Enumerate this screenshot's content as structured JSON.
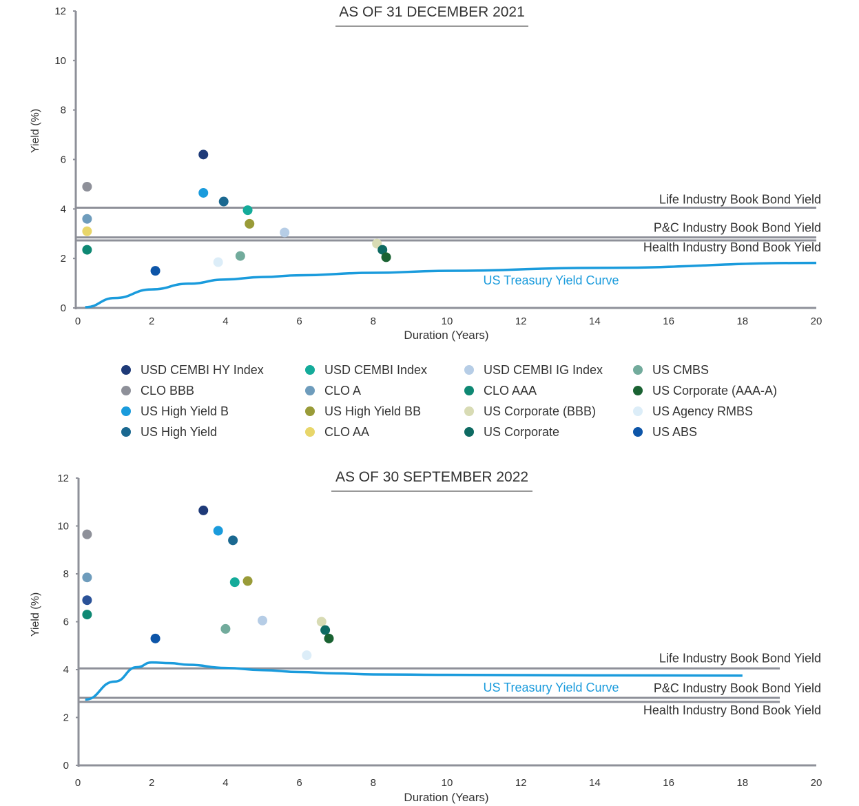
{
  "legend": [
    {
      "name": "USD CEMBI  HY Index",
      "color": "#1e3a78"
    },
    {
      "name": "USD CEMBI Index",
      "color": "#14ab9a"
    },
    {
      "name": "USD CEMBI IG Index",
      "color": "#b6cde6"
    },
    {
      "name": "US CMBS",
      "color": "#72ab9c"
    },
    {
      "name": "CLO BBB",
      "color": "#8e9099"
    },
    {
      "name": "CLO A",
      "color": "#6e9cbc"
    },
    {
      "name": "CLO AAA",
      "color": "#0e8873"
    },
    {
      "name": "US Corporate (AAA-A)",
      "color": "#1a6232"
    },
    {
      "name": "US High Yield B",
      "color": "#1a9bdc"
    },
    {
      "name": "US High Yield BB",
      "color": "#999b38"
    },
    {
      "name": "US Corporate (BBB)",
      "color": "#d8dbb4"
    },
    {
      "name": "US Agency RMBS",
      "color": "#dcedf8"
    },
    {
      "name": "US High Yield",
      "color": "#1a6890"
    },
    {
      "name": "CLO AA",
      "color": "#e8d66a"
    },
    {
      "name": "US Corporate",
      "color": "#0e6a62"
    },
    {
      "name": "US ABS",
      "color": "#0d55a8"
    }
  ],
  "chart_data": [
    {
      "type": "scatter",
      "title": "AS OF 31 DECEMBER 2021",
      "xlabel": "Duration (Years)",
      "ylabel": "Yield (%)",
      "xlim": [
        0,
        20
      ],
      "ylim": [
        0,
        12
      ],
      "xticks": [
        "0",
        "2",
        "4",
        "6",
        "8",
        "10",
        "12",
        "14",
        "16",
        "18",
        "20"
      ],
      "yticks": [
        "0",
        "2",
        "4",
        "6",
        "8",
        "10",
        "12"
      ],
      "points": [
        {
          "name": "USD CEMBI  HY Index",
          "x": 3.4,
          "y": 6.2
        },
        {
          "name": "CLO BBB",
          "x": 0.25,
          "y": 4.9
        },
        {
          "name": "US High Yield B",
          "x": 3.4,
          "y": 4.65
        },
        {
          "name": "US High Yield",
          "x": 3.95,
          "y": 4.3
        },
        {
          "name": "USD CEMBI Index",
          "x": 4.6,
          "y": 3.95
        },
        {
          "name": "US High Yield BB",
          "x": 4.65,
          "y": 3.4
        },
        {
          "name": "USD CEMBI IG Index",
          "x": 5.6,
          "y": 3.05
        },
        {
          "name": "CLO A",
          "x": 0.25,
          "y": 3.6
        },
        {
          "name": "CLO AA",
          "x": 0.25,
          "y": 3.1
        },
        {
          "name": "CLO AAA",
          "x": 0.25,
          "y": 2.35
        },
        {
          "name": "US Corporate (BBB)",
          "x": 8.1,
          "y": 2.6
        },
        {
          "name": "US Corporate",
          "x": 8.25,
          "y": 2.35
        },
        {
          "name": "US Corporate (AAA-A)",
          "x": 8.35,
          "y": 2.05
        },
        {
          "name": "US CMBS",
          "x": 4.4,
          "y": 2.1
        },
        {
          "name": "US Agency RMBS",
          "x": 3.8,
          "y": 1.85
        },
        {
          "name": "US ABS",
          "x": 2.1,
          "y": 1.5
        }
      ],
      "hlines": [
        {
          "label": "Life Industry Book Bond Yield",
          "y": 4.05
        },
        {
          "label": "P&C Industry Book Bond Yield",
          "y": 2.85
        },
        {
          "label": "Health Industry Bond Book Yield",
          "y": 2.73
        }
      ],
      "curve": {
        "label": "US Treasury Yield Curve",
        "color": "#1a9bdc",
        "points": [
          [
            0.2,
            0.03
          ],
          [
            1,
            0.4
          ],
          [
            2,
            0.75
          ],
          [
            3,
            0.98
          ],
          [
            4,
            1.15
          ],
          [
            5,
            1.25
          ],
          [
            6,
            1.32
          ],
          [
            8,
            1.42
          ],
          [
            10,
            1.5
          ],
          [
            14,
            1.62
          ],
          [
            20,
            1.82
          ]
        ]
      }
    },
    {
      "type": "scatter",
      "title": "AS OF 30 SEPTEMBER 2022",
      "xlabel": "Duration (Years)",
      "ylabel": "Yield (%)",
      "xlim": [
        0,
        20
      ],
      "ylim": [
        0,
        12
      ],
      "xticks": [
        "0",
        "2",
        "4",
        "6",
        "8",
        "10",
        "12",
        "14",
        "16",
        "18",
        "20"
      ],
      "yticks": [
        "0",
        "2",
        "4",
        "6",
        "8",
        "10",
        "12"
      ],
      "points": [
        {
          "name": "USD CEMBI  HY Index",
          "x": 3.4,
          "y": 10.65
        },
        {
          "name": "CLO BBB",
          "x": 0.25,
          "y": 9.65
        },
        {
          "name": "US High Yield B",
          "x": 3.8,
          "y": 9.8
        },
        {
          "name": "US High Yield",
          "x": 4.2,
          "y": 9.4
        },
        {
          "name": "CLO A",
          "x": 0.25,
          "y": 7.85
        },
        {
          "name": "USD CEMBI Index",
          "x": 4.25,
          "y": 7.65
        },
        {
          "name": "US High Yield BB",
          "x": 4.6,
          "y": 7.7
        },
        {
          "name": "CLO AA",
          "x": 0.25,
          "y": 6.9,
          "color": "#2a5298"
        },
        {
          "name": "CLO AAA",
          "x": 0.25,
          "y": 6.3
        },
        {
          "name": "US CMBS",
          "x": 4.0,
          "y": 5.7
        },
        {
          "name": "USD CEMBI IG Index",
          "x": 5.0,
          "y": 6.05
        },
        {
          "name": "US Corporate (BBB)",
          "x": 6.6,
          "y": 6.0
        },
        {
          "name": "US Corporate",
          "x": 6.7,
          "y": 5.65
        },
        {
          "name": "US Corporate (AAA-A)",
          "x": 6.8,
          "y": 5.3
        },
        {
          "name": "US Agency RMBS",
          "x": 6.2,
          "y": 4.6
        },
        {
          "name": "US ABS",
          "x": 2.1,
          "y": 5.3
        }
      ],
      "hlines": [
        {
          "label": "Life Industry Book Bond Yield",
          "y": 4.05
        },
        {
          "label": "P&C Industry Book Bond Yield",
          "y": 2.82
        },
        {
          "label": "Health Industry Bond Book Yield",
          "y": 2.65
        }
      ],
      "curve": {
        "label": "US Treasury Yield Curve",
        "color": "#1a9bdc",
        "points": [
          [
            0.2,
            2.75
          ],
          [
            1,
            3.5
          ],
          [
            1.6,
            4.1
          ],
          [
            2,
            4.3
          ],
          [
            2.5,
            4.27
          ],
          [
            3,
            4.2
          ],
          [
            4,
            4.07
          ],
          [
            5,
            3.98
          ],
          [
            6,
            3.9
          ],
          [
            7,
            3.84
          ],
          [
            8,
            3.8
          ],
          [
            10,
            3.78
          ],
          [
            14,
            3.76
          ],
          [
            18,
            3.75
          ]
        ]
      }
    }
  ]
}
